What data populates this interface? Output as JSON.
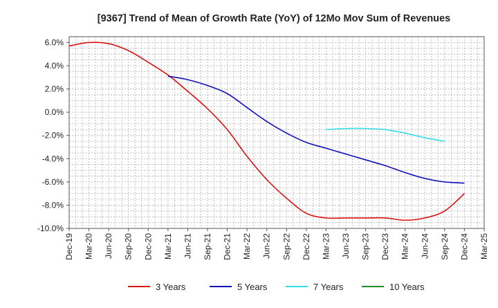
{
  "chart_data": {
    "type": "line",
    "title": "[9367]  Trend of Mean of Growth Rate (YoY) of 12Mo Mov Sum of Revenues",
    "xlabel": "",
    "ylabel": "",
    "x_ticks": [
      "Dec-19",
      "Mar-20",
      "Jun-20",
      "Sep-20",
      "Dec-20",
      "Mar-21",
      "Jun-21",
      "Sep-21",
      "Dec-21",
      "Mar-22",
      "Jun-22",
      "Sep-22",
      "Dec-22",
      "Mar-23",
      "Jun-23",
      "Sep-23",
      "Dec-23",
      "Mar-24",
      "Jun-24",
      "Sep-24",
      "Dec-24",
      "Mar-25"
    ],
    "y_ticks": [
      6,
      4,
      2,
      0,
      -2,
      -4,
      -6,
      -8,
      -10
    ],
    "y_tick_labels": [
      "6.0%",
      "4.0%",
      "2.0%",
      "0.0%",
      "-2.0%",
      "-4.0%",
      "-6.0%",
      "-8.0%",
      "-10.0%"
    ],
    "ylim": [
      -10,
      6.5
    ],
    "grid": true,
    "legend_position": "bottom",
    "series": [
      {
        "name": "3 Years",
        "color": "#dd1111",
        "start_index": 0,
        "values": [
          5.7,
          6.0,
          5.9,
          5.3,
          4.3,
          3.2,
          1.8,
          0.3,
          -1.5,
          -3.8,
          -5.8,
          -7.4,
          -8.7,
          -9.1,
          -9.1,
          -9.1,
          -9.1,
          -9.3,
          -9.1,
          -8.5,
          -7.0
        ]
      },
      {
        "name": "5 Years",
        "color": "#1111bb",
        "start_index": 5,
        "values": [
          3.1,
          2.8,
          2.3,
          1.6,
          0.4,
          -0.8,
          -1.8,
          -2.6,
          -3.1,
          -3.6,
          -4.1,
          -4.6,
          -5.2,
          -5.7,
          -6.0,
          -6.1
        ]
      },
      {
        "name": "7 Years",
        "color": "#33e0e8",
        "start_index": 13,
        "values": [
          -1.5,
          -1.4,
          -1.4,
          -1.5,
          -1.8,
          -2.2,
          -2.5
        ]
      },
      {
        "name": "10 Years",
        "color": "#228b22",
        "start_index": 0,
        "values": []
      }
    ]
  }
}
